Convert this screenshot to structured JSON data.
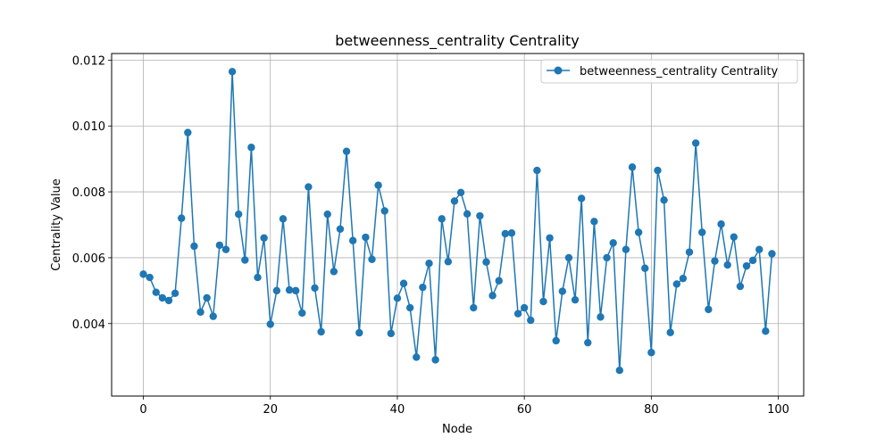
{
  "chart_data": {
    "type": "line",
    "title": "betweenness_centrality Centrality",
    "xlabel": "Node",
    "ylabel": "Centrality Value",
    "xlim": [
      -5,
      104
    ],
    "ylim": [
      0.0018,
      0.0122
    ],
    "xticks": [
      0,
      20,
      40,
      60,
      80,
      100
    ],
    "xtick_labels": [
      "0",
      "20",
      "40",
      "60",
      "80",
      "100"
    ],
    "yticks": [
      0.004,
      0.006,
      0.008,
      0.01,
      0.012
    ],
    "ytick_labels": [
      "0.004",
      "0.006",
      "0.008",
      "0.010",
      "0.012"
    ],
    "grid": true,
    "legend_position": "top-right",
    "color": "#1f77b4",
    "series": [
      {
        "name": "betweenness_centrality Centrality",
        "x": [
          0,
          1,
          2,
          3,
          4,
          5,
          6,
          7,
          8,
          9,
          10,
          11,
          12,
          13,
          14,
          15,
          16,
          17,
          18,
          19,
          20,
          21,
          22,
          23,
          24,
          25,
          26,
          27,
          28,
          29,
          30,
          31,
          32,
          33,
          34,
          35,
          36,
          37,
          38,
          39,
          40,
          41,
          42,
          43,
          44,
          45,
          46,
          47,
          48,
          49,
          50,
          51,
          52,
          53,
          54,
          55,
          56,
          57,
          58,
          59,
          60,
          61,
          62,
          63,
          64,
          65,
          66,
          67,
          68,
          69,
          70,
          71,
          72,
          73,
          74,
          75,
          76,
          77,
          78,
          79,
          80,
          81,
          82,
          83,
          84,
          85,
          86,
          87,
          88,
          89,
          90,
          91,
          92,
          93,
          94,
          95,
          96,
          97,
          98,
          99
        ],
        "values": [
          0.0055,
          0.0054,
          0.00495,
          0.00478,
          0.0047,
          0.00492,
          0.0072,
          0.0098,
          0.00635,
          0.00435,
          0.00478,
          0.00422,
          0.00638,
          0.00625,
          0.01165,
          0.00732,
          0.00593,
          0.00935,
          0.0054,
          0.0066,
          0.00398,
          0.005,
          0.00718,
          0.00502,
          0.005,
          0.00432,
          0.00815,
          0.00508,
          0.00375,
          0.00732,
          0.00558,
          0.00687,
          0.00923,
          0.00652,
          0.00372,
          0.00662,
          0.00595,
          0.0082,
          0.00742,
          0.0037,
          0.00477,
          0.00522,
          0.00448,
          0.00298,
          0.0051,
          0.00583,
          0.0029,
          0.00718,
          0.00588,
          0.00772,
          0.00798,
          0.00733,
          0.00448,
          0.00727,
          0.00587,
          0.00485,
          0.0053,
          0.00673,
          0.00675,
          0.0043,
          0.00448,
          0.0041,
          0.00865,
          0.00467,
          0.0066,
          0.00348,
          0.00498,
          0.006,
          0.00472,
          0.0078,
          0.00342,
          0.0071,
          0.0042,
          0.006,
          0.00645,
          0.00258,
          0.00625,
          0.00875,
          0.00677,
          0.00568,
          0.00312,
          0.00865,
          0.00775,
          0.00373,
          0.0052,
          0.00537,
          0.00617,
          0.00948,
          0.00677,
          0.00443,
          0.0059,
          0.00702,
          0.00578,
          0.00663,
          0.00513,
          0.00575,
          0.00592,
          0.00625,
          0.00377,
          0.00612
        ]
      }
    ]
  }
}
